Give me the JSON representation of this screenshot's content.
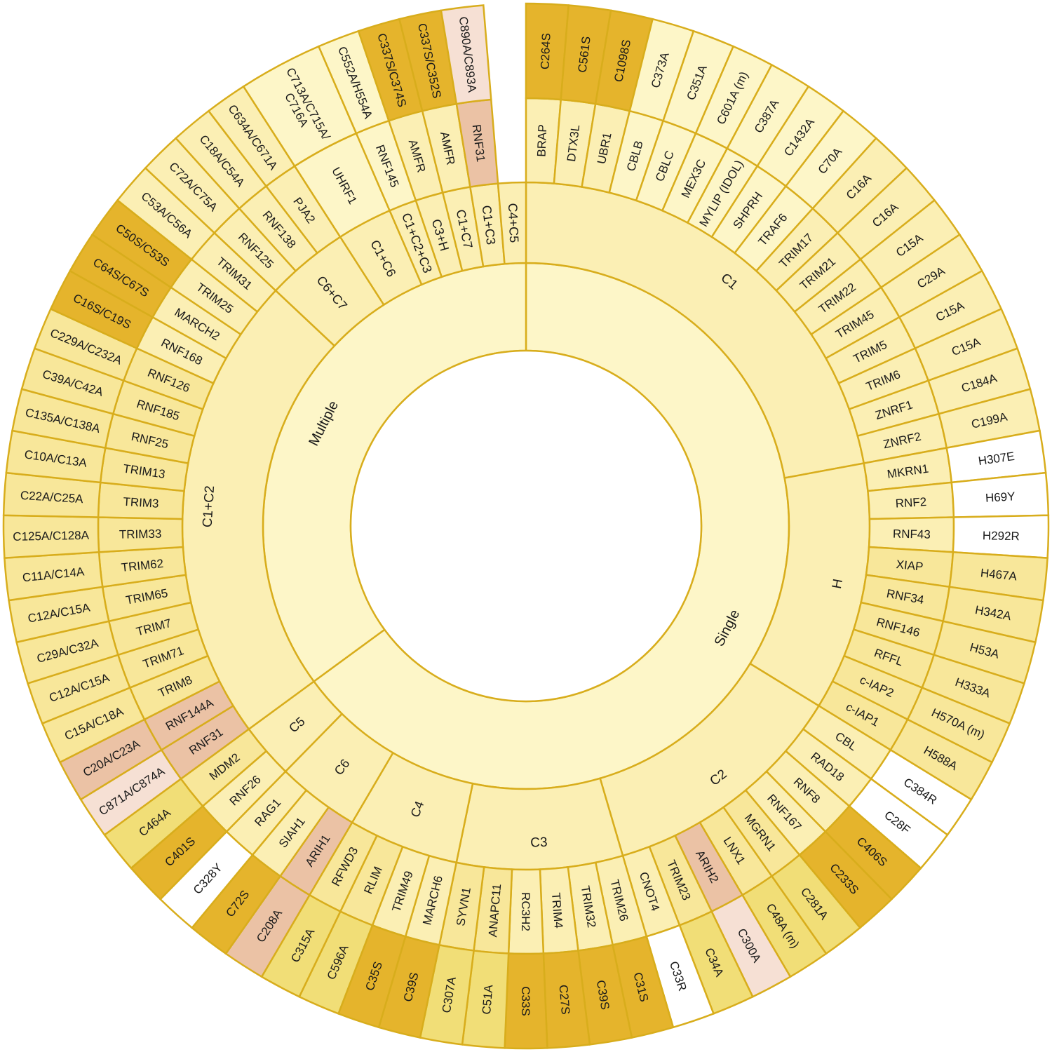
{
  "chart_data": {
    "type": "sunburst",
    "colors": {
      "light": "#fdf6c8",
      "pale": "#fbefb4",
      "medium": "#f8e79a",
      "strong": "#f1de77",
      "gold": "#e5b42c",
      "salmon": "#ebc2a5",
      "blush": "#f6e0d4",
      "white": "#ffffff",
      "border": "#d8ad1c"
    },
    "root": {
      "children": [
        {
          "label": "Single",
          "children": [
            {
              "label": "C1",
              "children": [
                {
                  "label": "BRAP",
                  "mutation": "C264S",
                  "color": "gold"
                },
                {
                  "label": "DTX3L",
                  "mutation": "C561S",
                  "color": "gold"
                },
                {
                  "label": "UBR1",
                  "mutation": "C1098S",
                  "color": "gold"
                },
                {
                  "label": "CBLB",
                  "mutation": "C373A",
                  "color": "light"
                },
                {
                  "label": "CBLC",
                  "mutation": "C351A",
                  "color": "light"
                },
                {
                  "label": "MEX3C",
                  "mutation": "C601A (m)",
                  "color": "light"
                },
                {
                  "label": "MYLIP (IDOL)",
                  "mutation": "C387A",
                  "color": "light"
                },
                {
                  "label": "SHPRH",
                  "mutation": "C1432A",
                  "color": "light"
                },
                {
                  "label": "TRAF6",
                  "mutation": "C70A",
                  "color": "light"
                },
                {
                  "label": "TRIM17",
                  "mutation": "C16A",
                  "color": "pale"
                },
                {
                  "label": "TRIM21",
                  "mutation": "C16A",
                  "color": "pale"
                },
                {
                  "label": "TRIM22",
                  "mutation": "C15A",
                  "color": "pale"
                },
                {
                  "label": "TRIM45",
                  "mutation": "C29A",
                  "color": "pale"
                },
                {
                  "label": "TRIM5",
                  "mutation": "C15A",
                  "color": "pale"
                },
                {
                  "label": "TRIM6",
                  "mutation": "C15A",
                  "color": "pale"
                },
                {
                  "label": "ZNRF1",
                  "mutation": "C184A",
                  "color": "pale"
                },
                {
                  "label": "ZNRF2",
                  "mutation": "C199A",
                  "color": "pale"
                }
              ]
            },
            {
              "label": "H",
              "children": [
                {
                  "label": "MKRN1",
                  "mutation": "H307E",
                  "color": "white"
                },
                {
                  "label": "RNF2",
                  "mutation": "H69Y",
                  "color": "white"
                },
                {
                  "label": "RNF43",
                  "mutation": "H292R",
                  "color": "white"
                },
                {
                  "label": "XIAP",
                  "mutation": "H467A",
                  "color": "medium"
                },
                {
                  "label": "RNF34",
                  "mutation": "H342A",
                  "color": "medium"
                },
                {
                  "label": "RNF146",
                  "mutation": "H53A",
                  "color": "medium"
                },
                {
                  "label": "RFFL",
                  "mutation": "H333A",
                  "color": "medium"
                },
                {
                  "label": "c-IAP2",
                  "mutation": "H570A (m)",
                  "color": "medium"
                },
                {
                  "label": "c-IAP1",
                  "mutation": "H588A",
                  "color": "medium"
                }
              ]
            },
            {
              "label": "C2",
              "children": [
                {
                  "label": "CBL",
                  "mutation": "C384R",
                  "color": "white"
                },
                {
                  "label": "RAD18",
                  "mutation": "C28F",
                  "color": "white"
                },
                {
                  "label": "RNF8",
                  "mutation": "C406S",
                  "color": "gold"
                },
                {
                  "label": "RNF167",
                  "mutation": "C233S",
                  "color": "gold"
                },
                {
                  "label": "MGRN1",
                  "mutation": "C281A",
                  "color": "strong"
                },
                {
                  "label": "LNX1",
                  "mutation": "C48A (m)",
                  "color": "strong"
                },
                {
                  "label": "ARIH2",
                  "mutation": "C300A",
                  "color": "salmon",
                  "outer_color": "blush"
                },
                {
                  "label": "TRIM23",
                  "mutation": "C34A",
                  "color": "strong"
                },
                {
                  "label": "CNOT4",
                  "mutation": "C33R",
                  "color": "white"
                }
              ]
            },
            {
              "label": "C3",
              "children": [
                {
                  "label": "TRIM26",
                  "mutation": "C31S",
                  "color": "gold"
                },
                {
                  "label": "TRIM32",
                  "mutation": "C39S",
                  "color": "gold"
                },
                {
                  "label": "TRIM4",
                  "mutation": "C27S",
                  "color": "gold"
                },
                {
                  "label": "RC3H2",
                  "mutation": "C33S",
                  "color": "gold"
                },
                {
                  "label": "ANAPC11",
                  "mutation": "C51A",
                  "color": "strong"
                },
                {
                  "label": "SYVN1",
                  "mutation": "C307A",
                  "color": "strong"
                }
              ]
            },
            {
              "label": "C4",
              "children": [
                {
                  "label": "MARCH6",
                  "mutation": "C39S",
                  "color": "gold"
                },
                {
                  "label": "TRIM49",
                  "mutation": "C35S",
                  "color": "gold"
                },
                {
                  "label": "RLIM",
                  "mutation": "C596A",
                  "color": "strong"
                },
                {
                  "label": "RFWD3",
                  "mutation": "C315A",
                  "color": "strong"
                }
              ]
            },
            {
              "label": "C6",
              "children": [
                {
                  "label": "ARIH1",
                  "mutation": "C208A",
                  "color": "salmon"
                },
                {
                  "label": "SIAH1",
                  "mutation": "C72S",
                  "color": "gold"
                },
                {
                  "label": "RAG1",
                  "mutation": "C328Y",
                  "color": "white"
                }
              ]
            },
            {
              "label": "C5",
              "children": [
                {
                  "label": "RNF26",
                  "mutation": "C401S",
                  "color": "gold"
                },
                {
                  "label": "MDM2",
                  "mutation": "C464A",
                  "color": "strong"
                }
              ]
            }
          ]
        },
        {
          "label": "Multiple",
          "children": [
            {
              "label": "C1+C2",
              "children": [
                {
                  "label": "RNF31",
                  "mutation": "C871A/C874A",
                  "color": "salmon",
                  "outer_color": "blush"
                },
                {
                  "label": "RNF144A",
                  "mutation": "C20A/C23A",
                  "color": "salmon"
                },
                {
                  "label": "TRIM8",
                  "mutation": "C15A/C18A",
                  "color": "medium"
                },
                {
                  "label": "TRIM71",
                  "mutation": "C12A/C15A",
                  "color": "medium"
                },
                {
                  "label": "TRIM7",
                  "mutation": "C29A/C32A",
                  "color": "medium"
                },
                {
                  "label": "TRIM65",
                  "mutation": "C12A/C15A",
                  "color": "medium"
                },
                {
                  "label": "TRIM62",
                  "mutation": "C11A/C14A",
                  "color": "medium"
                },
                {
                  "label": "TRIM33",
                  "mutation": "C125A/C128A",
                  "color": "medium"
                },
                {
                  "label": "TRIM3",
                  "mutation": "C22A/C25A",
                  "color": "medium"
                },
                {
                  "label": "TRIM13",
                  "mutation": "C10A/C13A",
                  "color": "medium"
                },
                {
                  "label": "RNF25",
                  "mutation": "C135A/C138A",
                  "color": "medium"
                },
                {
                  "label": "RNF185",
                  "mutation": "C39A/C42A",
                  "color": "medium"
                },
                {
                  "label": "RNF126",
                  "mutation": "C229A/C232A",
                  "color": "medium"
                },
                {
                  "label": "RNF168",
                  "mutation": "C16S/C19S",
                  "color": "gold"
                },
                {
                  "label": "MARCH2",
                  "mutation": "C64S/C67S",
                  "color": "gold"
                },
                {
                  "label": "TRIM25",
                  "mutation": "C50S/C53S",
                  "color": "gold"
                },
                {
                  "label": "TRIM31",
                  "mutation": "C53A/C56A",
                  "color": "pale"
                }
              ]
            },
            {
              "label": "C6+C7",
              "children": [
                {
                  "label": "RNF125",
                  "mutation": "C72A/C75A",
                  "color": "pale"
                },
                {
                  "label": "RNF138",
                  "mutation": "C18A/C54A",
                  "color": "pale"
                },
                {
                  "label": "PJA2",
                  "mutation": "C634A/C671A",
                  "color": "pale"
                }
              ]
            },
            {
              "label": "C1+C6",
              "children": [
                {
                  "label": "UHRF1",
                  "mutation": "C713A/C715A/\nC716A",
                  "color": "light",
                  "span": 2
                }
              ]
            },
            {
              "label": "C1+C2+C3",
              "children": [
                {
                  "label": "RNF145",
                  "mutation": "C552A/H554A",
                  "color": "light"
                }
              ]
            },
            {
              "label": "C3+H",
              "children": [
                {
                  "label": "AMFR",
                  "mutation": "C337S/C374S",
                  "color": "gold"
                }
              ]
            },
            {
              "label": "C1+C7",
              "children": [
                {
                  "label": "AMFR",
                  "mutation": "C337S/C352S",
                  "color": "gold"
                }
              ]
            },
            {
              "label": "C1+C3",
              "children": [
                {
                  "label": "RNF31",
                  "mutation": "C890A/C893A",
                  "color": "salmon",
                  "outer_color": "blush"
                }
              ]
            },
            {
              "label": "C4+C5",
              "children": []
            }
          ]
        }
      ]
    }
  }
}
